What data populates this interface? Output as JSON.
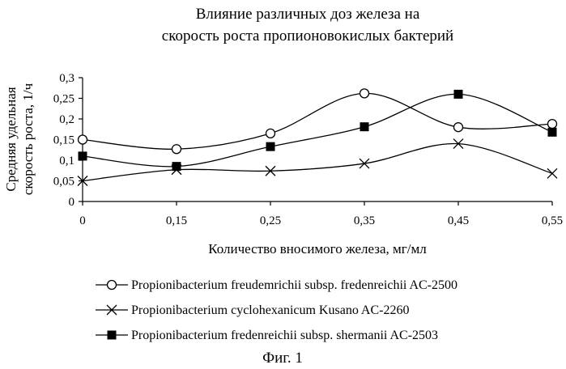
{
  "chart_data": {
    "type": "line",
    "title": [
      "Влияние различных доз железа на",
      "скорость роста пропионовокислых бактерий"
    ],
    "xlabel": "Количество вносимого железа, мг/мл",
    "ylabel": [
      "Средняя удельная",
      "скорость роста, 1/ч"
    ],
    "categories": [
      "0",
      "0,15",
      "0,25",
      "0,35",
      "0,45",
      "0,55"
    ],
    "y_ticks": [
      "0",
      "0,05",
      "0,1",
      "0,15",
      "0,2",
      "0,25",
      "0,3"
    ],
    "ylim": [
      0,
      0.3
    ],
    "smooth": true,
    "grid": false,
    "legend_position": "bottom",
    "series": [
      {
        "name": "Propionibacterium freudemrichii subsp. fredenreichii AC-2500",
        "marker": "open-circle",
        "values": [
          0.15,
          0.127,
          0.165,
          0.262,
          0.18,
          0.188
        ]
      },
      {
        "name": "Propionibacterium cyclohexanicum Kusano AC-2260",
        "marker": "cross",
        "values": [
          0.05,
          0.077,
          0.074,
          0.092,
          0.14,
          0.068
        ]
      },
      {
        "name": "Propionibacterium fredenreichii subsp. shermanii AC-2503",
        "marker": "filled-square",
        "values": [
          0.11,
          0.085,
          0.133,
          0.181,
          0.26,
          0.168
        ]
      }
    ]
  },
  "caption": "Фиг. 1"
}
